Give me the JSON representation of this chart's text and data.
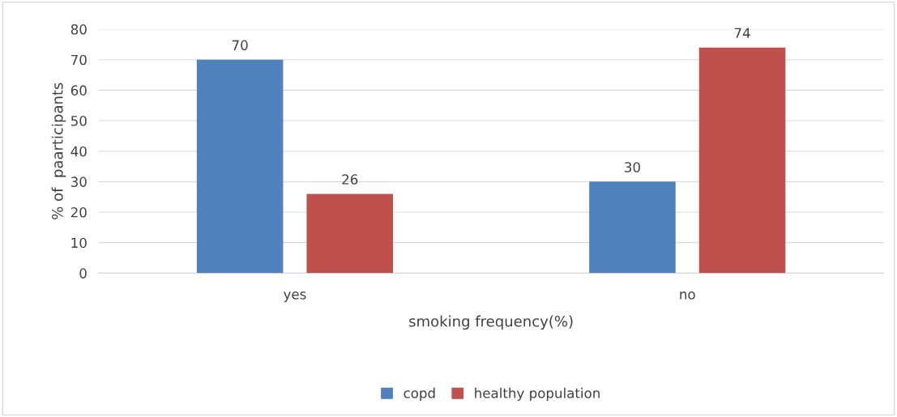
{
  "chart_data": {
    "type": "bar",
    "xlabel": "smoking frequency(%)",
    "ylabel": "% of  paarticipants",
    "categories": [
      "yes",
      "no"
    ],
    "series": [
      {
        "name": "copd",
        "color": "#4f81bd",
        "values": [
          70,
          30
        ]
      },
      {
        "name": "healthy population",
        "color": "#c0504d",
        "values": [
          26,
          74
        ]
      }
    ],
    "ylim": [
      0,
      80
    ],
    "yticks": [
      0,
      10,
      20,
      30,
      40,
      50,
      60,
      70,
      80
    ],
    "grid": "y",
    "legend": "bottom",
    "data_labels": true
  }
}
